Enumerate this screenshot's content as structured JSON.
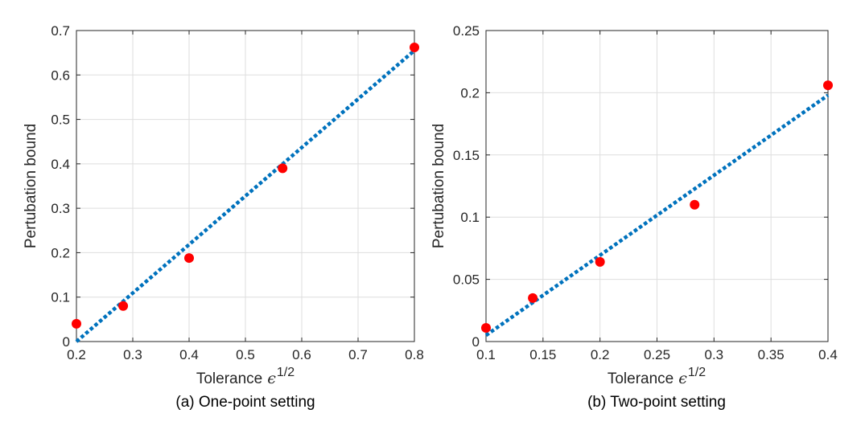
{
  "colors": {
    "fit_line": "#0072BD",
    "points": "#FF0000",
    "axis": "#262626",
    "grid": "#dedede"
  },
  "chart_data": [
    {
      "type": "scatter",
      "caption": "(a) One-point setting",
      "xlabel": "Tolerance",
      "xlabel_symbol": "ϵ",
      "xlabel_exponent": "1/2",
      "ylabel": "Pertubation bound",
      "xlim": [
        0.2,
        0.8
      ],
      "ylim": [
        0,
        0.7
      ],
      "xticks": [
        "0.2",
        "0.3",
        "0.4",
        "0.5",
        "0.6",
        "0.7",
        "0.8"
      ],
      "yticks": [
        "0",
        "0.1",
        "0.2",
        "0.3",
        "0.4",
        "0.5",
        "0.6",
        "0.7"
      ],
      "grid": true,
      "points": {
        "x": [
          0.2,
          0.283,
          0.4,
          0.566,
          0.8
        ],
        "y": [
          0.04,
          0.08,
          0.188,
          0.39,
          0.662
        ]
      },
      "fit_line": {
        "style": "dotted",
        "x": [
          0.2,
          0.8
        ],
        "y": [
          0.0,
          0.655
        ]
      }
    },
    {
      "type": "scatter",
      "caption": "(b) Two-point setting",
      "xlabel": "Tolerance",
      "xlabel_symbol": "ϵ",
      "xlabel_exponent": "1/2",
      "ylabel": "Pertubation bound",
      "xlim": [
        0.1,
        0.4
      ],
      "ylim": [
        0,
        0.25
      ],
      "xticks": [
        "0.1",
        "0.15",
        "0.2",
        "0.25",
        "0.3",
        "0.35",
        "0.4"
      ],
      "yticks": [
        "0",
        "0.05",
        "0.1",
        "0.15",
        "0.2",
        "0.25"
      ],
      "grid": true,
      "points": {
        "x": [
          0.1,
          0.141,
          0.2,
          0.283,
          0.4
        ],
        "y": [
          0.011,
          0.035,
          0.064,
          0.11,
          0.206
        ]
      },
      "fit_line": {
        "style": "dotted",
        "x": [
          0.1,
          0.4
        ],
        "y": [
          0.005,
          0.198
        ]
      }
    }
  ]
}
